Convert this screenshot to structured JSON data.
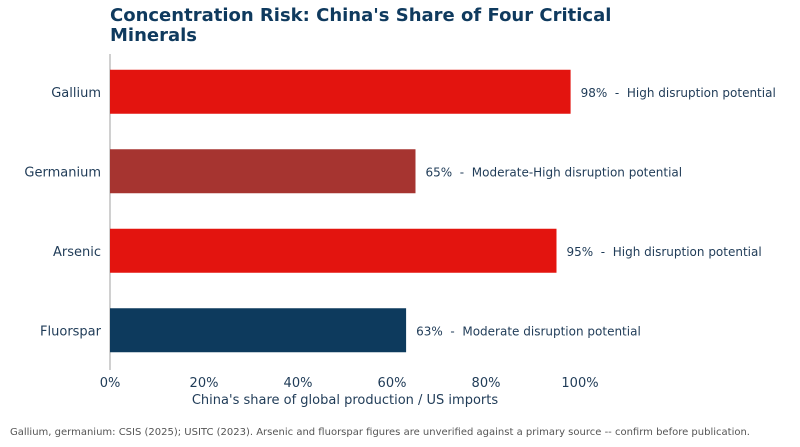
{
  "chart_data": {
    "type": "bar",
    "orientation": "horizontal",
    "title": "Concentration Risk: China's Share of Four Critical Minerals",
    "xlabel": "China's share of global production / US imports",
    "ylabel": "",
    "xlim": [
      0,
      100
    ],
    "x_ticks": [
      "0%",
      "20%",
      "40%",
      "60%",
      "80%",
      "100%"
    ],
    "grid": false,
    "categories": [
      "Gallium",
      "Germanium",
      "Arsenic",
      "Fluorspar"
    ],
    "values": [
      98,
      65,
      95,
      63
    ],
    "labels": [
      "98%  -  High disruption potential",
      "65%  -  Moderate-High disruption potential",
      "95%  -  High disruption potential",
      "63%  -  Moderate disruption potential"
    ],
    "colors": [
      "#e3140f",
      "#a63430",
      "#e3140f",
      "#0d3a5d"
    ]
  },
  "source_note": "Gallium, germanium: CSIS (2025); USITC (2023). Arsenic and fluorspar figures are unverified against a primary source -- confirm before publication."
}
